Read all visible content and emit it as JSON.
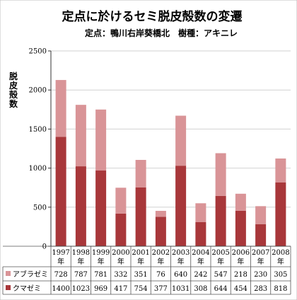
{
  "title": "定点に於けるセミ脱皮殻数の変遷",
  "subtitle": "定点：鴨川右岸葵橋北　樹種：アキニレ",
  "chart_data": {
    "type": "bar",
    "stacked": true,
    "title": "定点に於けるセミ脱皮殻数の変遷",
    "subtitle": "定点：鴨川右岸葵橋北　樹種：アキニレ",
    "ylabel": "脱皮殻数",
    "xlabel": "",
    "ylim": [
      0,
      2500
    ],
    "yticks": [
      0,
      500,
      1000,
      1500,
      2000,
      2500
    ],
    "grid": true,
    "legend": "table-left",
    "year_suffix": "年",
    "categories": [
      "1997",
      "1998",
      "1999",
      "2000",
      "2001",
      "2002",
      "2003",
      "2004",
      "2005",
      "2006",
      "2007",
      "2008"
    ],
    "series": [
      {
        "name": "クマゼミ",
        "color": "#a8373a",
        "values": [
          1400,
          1023,
          969,
          417,
          754,
          377,
          1031,
          308,
          644,
          454,
          283,
          818
        ]
      },
      {
        "name": "アブラゼミ",
        "color": "#d99497",
        "values": [
          728,
          787,
          781,
          332,
          351,
          76,
          640,
          242,
          547,
          218,
          230,
          305
        ]
      }
    ],
    "table_order": [
      "アブラゼミ",
      "クマゼミ"
    ]
  }
}
